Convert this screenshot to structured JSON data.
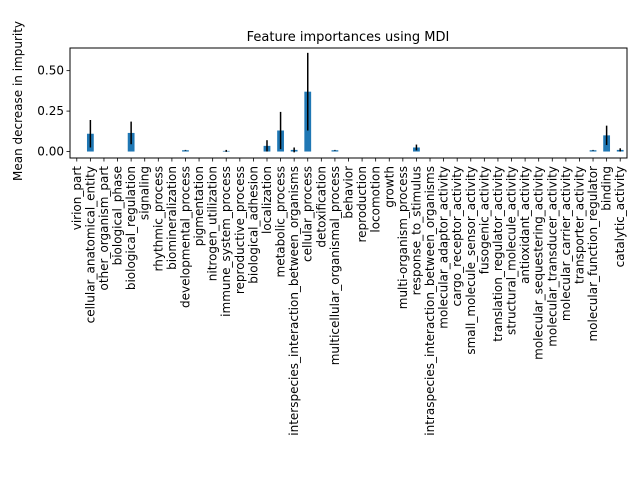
{
  "chart_data": {
    "type": "bar",
    "title": "Feature importances using MDI",
    "xlabel": "",
    "ylabel": "Mean decrease in impurity",
    "ylim": [
      -0.04,
      0.64
    ],
    "yticks": [
      0.0,
      0.25,
      0.5
    ],
    "ytick_labels": [
      "0.00",
      "0.25",
      "0.50"
    ],
    "grid": false,
    "bar_color": "#1f77b4",
    "error_color": "#000000",
    "categories": [
      "virion_part",
      "cellular_anatomical_entity",
      "other_organism_part",
      "biological_phase",
      "biological_regulation",
      "signaling",
      "rhythmic_process",
      "biomineralization",
      "developmental_process",
      "pigmentation",
      "nitrogen_utilization",
      "immune_system_process",
      "reproductive_process",
      "biological_adhesion",
      "localization",
      "metabolic_process",
      "interspecies_interaction_between_organisms",
      "cellular_process",
      "detoxification",
      "multicellular_organismal_process",
      "behavior",
      "reproduction",
      "locomotion",
      "growth",
      "multi-organism_process",
      "response_to_stimulus",
      "intraspecies_interaction_between_organisms",
      "molecular_adaptor_activity",
      "cargo_receptor_activity",
      "small_molecule_sensor_activity",
      "fusogenic_activity",
      "translation_regulator_activity",
      "structural_molecule_activity",
      "antioxidant_activity",
      "molecular_sequestering_activity",
      "molecular_transducer_activity",
      "molecular_carrier_activity",
      "transporter_activity",
      "molecular_function_regulator",
      "binding",
      "catalytic_activity"
    ],
    "values": [
      0,
      0.11,
      0,
      0,
      0.115,
      0,
      0,
      0,
      0.008,
      0,
      0,
      0.004,
      0,
      0,
      0.035,
      0.13,
      0.01,
      0.37,
      0,
      0.008,
      0,
      0,
      0,
      0,
      0,
      0.025,
      0,
      0,
      0,
      0,
      0,
      0,
      0,
      0,
      0,
      0,
      0,
      0,
      0.008,
      0.1,
      0.01
    ],
    "errors": [
      0,
      0.085,
      0,
      0,
      0.07,
      0,
      0,
      0,
      0.002,
      0,
      0,
      0.006,
      0,
      0,
      0.035,
      0.115,
      0.015,
      0.24,
      0,
      0.002,
      0,
      0,
      0,
      0,
      0,
      0.018,
      0,
      0,
      0,
      0,
      0,
      0,
      0,
      0,
      0,
      0,
      0,
      0,
      0.002,
      0.06,
      0.01
    ]
  }
}
